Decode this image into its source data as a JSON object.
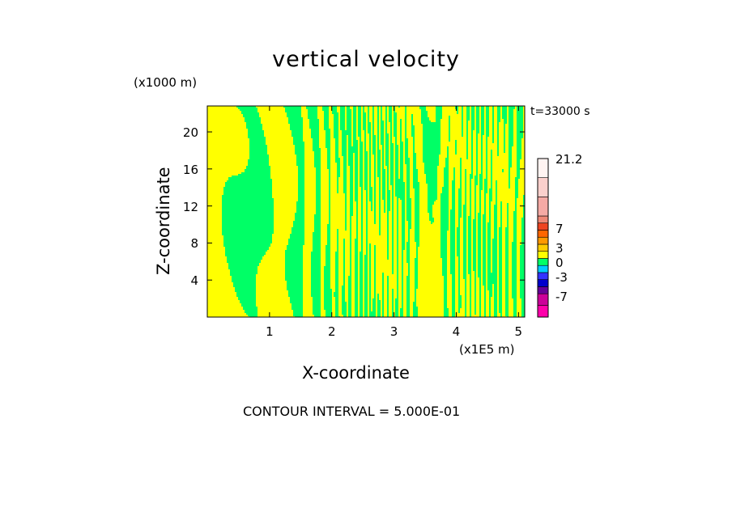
{
  "chart_data": {
    "type": "heatmap",
    "title": "vertical velocity",
    "xlabel": "X-coordinate",
    "ylabel": "Z-coordinate",
    "x_unit": "(x1E5 m)",
    "y_unit": "(x1000 m)",
    "time_label": "t=33000 s",
    "footer": "CONTOUR INTERVAL = 5.000E-01",
    "xlim": [
      0,
      5.1
    ],
    "ylim": [
      0,
      22.8
    ],
    "x_ticks": [
      "1",
      "2",
      "3",
      "4",
      "5"
    ],
    "y_ticks": [
      "4",
      "8",
      "12",
      "16",
      "20"
    ],
    "colorbar": {
      "labels": [
        "21.2",
        "7",
        "3",
        "0",
        "-3",
        "-7"
      ],
      "colors": [
        "#ff00aa",
        "#cc0099",
        "#660099",
        "#0000cc",
        "#3333ff",
        "#00ccff",
        "#00ff66",
        "#ffff00",
        "#ffcc00",
        "#ff9900",
        "#ff6600",
        "#ee4422",
        "#ee8877",
        "#f5aaa5",
        "#fbd0cc",
        "#fff4f2"
      ],
      "dominant_fill_colors": [
        "#ffff00",
        "#00ff66"
      ]
    },
    "colors": {
      "positive": "#ffff00",
      "negative": "#00ff66"
    }
  }
}
